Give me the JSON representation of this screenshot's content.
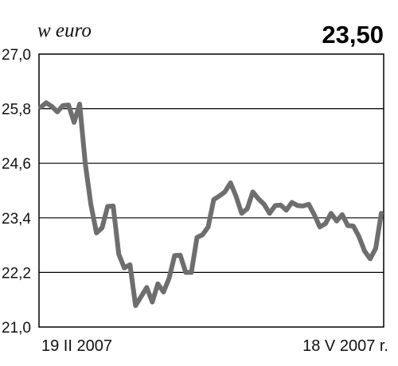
{
  "chart_data": {
    "type": "line",
    "unit_label": "w euro",
    "current_value_label": "23,50",
    "ylim": [
      21.0,
      27.0
    ],
    "y_ticks": [
      {
        "value": 21.0,
        "label": "21,0"
      },
      {
        "value": 22.2,
        "label": "22,2"
      },
      {
        "value": 23.4,
        "label": "23,4"
      },
      {
        "value": 24.6,
        "label": "24,6"
      },
      {
        "value": 25.8,
        "label": "25,8"
      },
      {
        "value": 27.0,
        "label": "27,0"
      }
    ],
    "grid": "horizontal",
    "x_start_label": "19 II 2007",
    "x_end_label": "18 V 2007 r.",
    "line_color": "#6e6e6e",
    "series": [
      {
        "values": [
          25.83,
          25.93,
          25.85,
          25.73,
          25.87,
          25.88,
          25.5,
          25.9,
          24.6,
          23.7,
          23.07,
          23.18,
          23.65,
          23.66,
          22.6,
          22.3,
          22.37,
          21.47,
          21.67,
          21.87,
          21.55,
          21.95,
          21.77,
          22.07,
          22.57,
          22.58,
          22.2,
          22.2,
          22.97,
          23.03,
          23.2,
          23.8,
          23.88,
          23.97,
          24.17,
          23.87,
          23.5,
          23.6,
          23.97,
          23.82,
          23.7,
          23.5,
          23.67,
          23.68,
          23.57,
          23.74,
          23.67,
          23.66,
          23.7,
          23.47,
          23.2,
          23.27,
          23.5,
          23.33,
          23.47,
          23.23,
          23.22,
          22.99,
          22.67,
          22.5,
          22.73,
          23.5
        ]
      }
    ]
  }
}
